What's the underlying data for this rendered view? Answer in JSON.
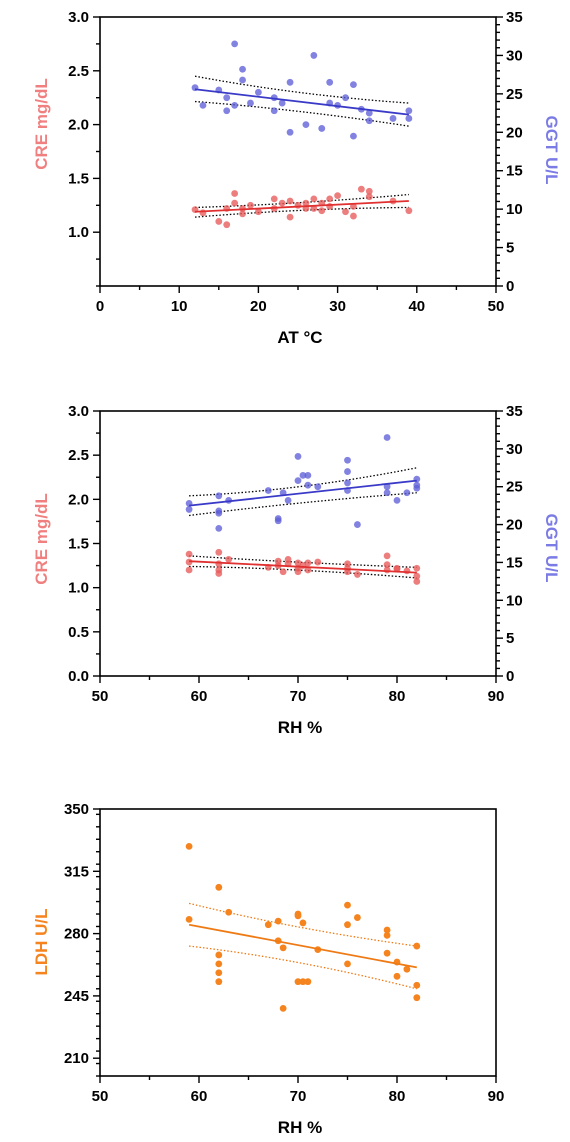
{
  "colors": {
    "cre": "#f08080",
    "cre_point": "#e85a5a",
    "cre_line": "#e03030",
    "ggt": "#7b7be6",
    "ggt_point": "#5f5fd8",
    "ggt_line": "#3a3ac8",
    "ldh": "#f5841f",
    "ldh_line": "#ef7a14",
    "ci": "#000000"
  },
  "chart_data": [
    {
      "type": "scatter",
      "xlabel": "AT °C",
      "ylabel": "CRE mg/dL",
      "y2label": "GGT U/L",
      "xlim": [
        0,
        50
      ],
      "ylim": [
        0.5,
        3.0
      ],
      "y2lim": [
        0,
        35
      ],
      "xticks": [
        0,
        10,
        20,
        30,
        40,
        50
      ],
      "yticks": [
        1.0,
        1.5,
        2.0,
        2.5,
        3.0
      ],
      "y2ticks": [
        0,
        5,
        10,
        15,
        20,
        25,
        30,
        35
      ],
      "grid": false,
      "series": [
        {
          "axis": "left",
          "x": [
            12,
            13,
            15,
            16,
            16,
            17,
            17,
            18,
            18,
            19,
            20,
            22,
            22,
            23,
            24,
            24,
            25,
            26,
            26,
            27,
            27,
            28,
            28,
            29,
            29,
            30,
            31,
            32,
            32,
            33,
            34,
            34,
            37,
            39
          ],
          "y": [
            1.21,
            1.18,
            1.1,
            1.07,
            1.22,
            1.36,
            1.27,
            1.17,
            1.22,
            1.25,
            1.19,
            1.31,
            1.22,
            1.27,
            1.14,
            1.29,
            1.25,
            1.22,
            1.27,
            1.31,
            1.22,
            1.27,
            1.2,
            1.31,
            1.24,
            1.34,
            1.19,
            1.15,
            1.24,
            1.4,
            1.38,
            1.33,
            1.29,
            1.2
          ],
          "fit": [
            [
              12,
              1.19
            ],
            [
              39,
              1.29
            ]
          ],
          "ci_upper": [
            [
              12,
              1.23
            ],
            [
              25,
              1.26
            ],
            [
              39,
              1.35
            ]
          ],
          "ci_lower": [
            [
              12,
              1.14
            ],
            [
              25,
              1.22
            ],
            [
              39,
              1.23
            ]
          ]
        },
        {
          "axis": "right",
          "x": [
            12,
            13,
            15,
            16,
            16,
            17,
            17,
            18,
            18,
            19,
            20,
            22,
            22,
            23,
            24,
            24,
            26,
            27,
            28,
            29,
            29,
            30,
            31,
            32,
            32,
            33,
            34,
            34,
            37,
            39,
            39
          ],
          "y": [
            25.8,
            23.5,
            25.5,
            22.8,
            24.5,
            31.5,
            23.5,
            26.8,
            28.2,
            23.8,
            25.2,
            24.5,
            22.8,
            23.8,
            20.0,
            26.5,
            21.0,
            30.0,
            20.5,
            26.5,
            23.8,
            23.5,
            24.5,
            19.5,
            26.2,
            23.0,
            22.5,
            21.5,
            21.8,
            21.8,
            22.8
          ],
          "fit": [
            [
              12,
              25.6
            ],
            [
              39,
              22.3
            ]
          ],
          "ci_upper": [
            [
              12,
              27.3
            ],
            [
              25,
              24.8
            ],
            [
              39,
              23.8
            ]
          ],
          "ci_lower": [
            [
              12,
              24.0
            ],
            [
              25,
              23.0
            ],
            [
              39,
              20.8
            ]
          ]
        }
      ]
    },
    {
      "type": "scatter",
      "xlabel": "RH %",
      "ylabel": "CRE mg/dL",
      "y2label": "GGT U/L",
      "xlim": [
        50,
        90
      ],
      "ylim": [
        0.0,
        3.0
      ],
      "y2lim": [
        0,
        35
      ],
      "xticks": [
        50,
        60,
        70,
        80,
        90
      ],
      "yticks": [
        0.0,
        0.5,
        1.0,
        1.5,
        2.0,
        2.5,
        3.0
      ],
      "y2ticks": [
        0,
        5,
        10,
        15,
        20,
        25,
        30,
        35
      ],
      "grid": false,
      "series": [
        {
          "axis": "left",
          "x": [
            59,
            59,
            59,
            62,
            62,
            62,
            62,
            63,
            67,
            68,
            68,
            68.5,
            69,
            69,
            70,
            70,
            70,
            70.5,
            71,
            71,
            72,
            75,
            75,
            75,
            76,
            79,
            79,
            79,
            80,
            80,
            81,
            82,
            82,
            82
          ],
          "y": [
            1.38,
            1.29,
            1.2,
            1.4,
            1.27,
            1.2,
            1.16,
            1.32,
            1.23,
            1.3,
            1.25,
            1.18,
            1.32,
            1.27,
            1.28,
            1.22,
            1.18,
            1.25,
            1.28,
            1.2,
            1.29,
            1.27,
            1.22,
            1.18,
            1.15,
            1.36,
            1.26,
            1.2,
            1.22,
            1.21,
            1.19,
            1.22,
            1.13,
            1.07
          ],
          "fit": [
            [
              59,
              1.3
            ],
            [
              82,
              1.17
            ]
          ],
          "ci_upper": [
            [
              59,
              1.36
            ],
            [
              70,
              1.28
            ],
            [
              82,
              1.23
            ]
          ],
          "ci_lower": [
            [
              59,
              1.24
            ],
            [
              70,
              1.22
            ],
            [
              82,
              1.11
            ]
          ]
        },
        {
          "axis": "right",
          "x": [
            59,
            59,
            62,
            62,
            62,
            62,
            63,
            67,
            68,
            68,
            68.5,
            69,
            70,
            70,
            70.5,
            71,
            71,
            72,
            75,
            75,
            75,
            75,
            76,
            79,
            79,
            79,
            80,
            81,
            82,
            82,
            82
          ],
          "y": [
            22.8,
            22.0,
            23.8,
            21.8,
            21.5,
            19.5,
            23.2,
            24.5,
            20.8,
            20.5,
            24.2,
            23.2,
            29.0,
            25.8,
            26.5,
            25.2,
            26.5,
            25.0,
            28.5,
            27.0,
            25.5,
            24.5,
            20.0,
            31.5,
            25.0,
            24.2,
            23.2,
            24.2,
            26.0,
            25.2,
            24.8
          ],
          "fit": [
            [
              59,
              22.5
            ],
            [
              82,
              25.8
            ]
          ],
          "ci_upper": [
            [
              59,
              23.8
            ],
            [
              70,
              24.4
            ],
            [
              82,
              27.5
            ]
          ],
          "ci_lower": [
            [
              59,
              21.2
            ],
            [
              70,
              23.0
            ],
            [
              82,
              24.2
            ]
          ]
        }
      ]
    },
    {
      "type": "scatter",
      "xlabel": "RH %",
      "ylabel": "LDH U/L",
      "xlim": [
        50,
        90
      ],
      "ylim": [
        200,
        350
      ],
      "yticks": [
        210,
        245,
        280,
        315,
        350
      ],
      "xticks": [
        50,
        60,
        70,
        80,
        90
      ],
      "grid": false,
      "series": [
        {
          "axis": "left",
          "x": [
            59,
            59,
            62,
            62,
            62,
            62,
            62,
            63,
            67,
            68,
            68,
            68.5,
            68.5,
            70,
            70,
            70,
            70.5,
            70.5,
            71,
            72,
            75,
            75,
            75,
            76,
            79,
            79,
            79,
            80,
            80,
            81,
            82,
            82,
            82
          ],
          "y": [
            329,
            288,
            306,
            268,
            263,
            258,
            253,
            292,
            285,
            287,
            276,
            272,
            238,
            291,
            290,
            253,
            286,
            253,
            253,
            271,
            296,
            285,
            263,
            289,
            282,
            279,
            269,
            264,
            256,
            260,
            273,
            251,
            244
          ],
          "fit": [
            [
              59,
              285
            ],
            [
              82,
              261
            ]
          ],
          "ci_upper": [
            [
              59,
              297
            ],
            [
              70,
              282
            ],
            [
              82,
              273
            ]
          ],
          "ci_lower": [
            [
              59,
              273
            ],
            [
              70,
              266
            ],
            [
              82,
              249
            ]
          ]
        }
      ]
    }
  ]
}
